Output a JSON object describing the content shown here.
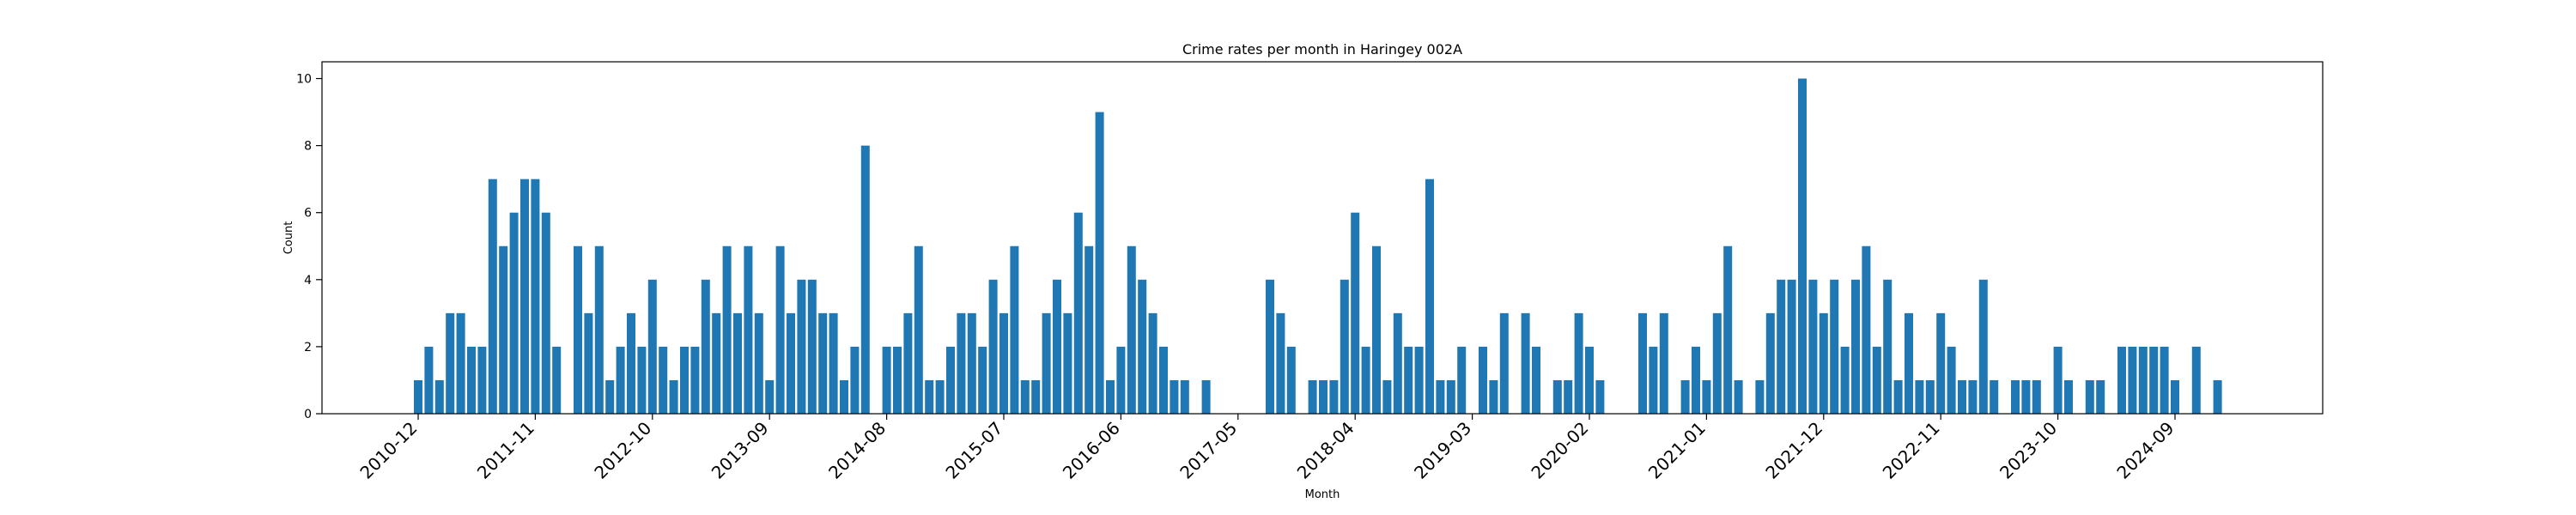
{
  "chart_data": {
    "type": "bar",
    "title": "Crime rates per month in Haringey 002A",
    "xlabel": "Month",
    "ylabel": "Count",
    "ylim": [
      0,
      10.5
    ],
    "yticks": [
      0,
      2,
      4,
      6,
      8,
      10
    ],
    "xticks": [
      "2010-12",
      "2011-11",
      "2012-10",
      "2013-09",
      "2014-08",
      "2015-07",
      "2016-06",
      "2017-05",
      "2018-04",
      "2019-03",
      "2020-02",
      "2021-01",
      "2021-12",
      "2022-11",
      "2023-10",
      "2024-09"
    ],
    "grid": false,
    "bar_color": "#1f77b4",
    "start_month": "2010-12",
    "values": [
      1,
      2,
      1,
      3,
      3,
      2,
      2,
      7,
      5,
      6,
      7,
      7,
      6,
      2,
      0,
      5,
      3,
      5,
      1,
      2,
      3,
      2,
      4,
      2,
      1,
      2,
      2,
      4,
      3,
      5,
      3,
      5,
      3,
      1,
      5,
      3,
      4,
      4,
      3,
      3,
      1,
      2,
      8,
      0,
      2,
      2,
      3,
      5,
      1,
      1,
      2,
      3,
      3,
      2,
      4,
      3,
      5,
      1,
      1,
      3,
      4,
      3,
      6,
      5,
      9,
      1,
      2,
      5,
      4,
      3,
      2,
      1,
      1,
      0,
      1,
      0,
      0,
      0,
      0,
      0,
      4,
      3,
      2,
      0,
      1,
      1,
      1,
      4,
      6,
      2,
      5,
      1,
      3,
      2,
      2,
      7,
      1,
      1,
      2,
      0,
      2,
      1,
      3,
      0,
      3,
      2,
      0,
      1,
      1,
      3,
      2,
      1,
      0,
      0,
      0,
      3,
      2,
      3,
      0,
      1,
      2,
      1,
      3,
      5,
      1,
      0,
      1,
      3,
      4,
      4,
      10,
      4,
      3,
      4,
      2,
      4,
      5,
      2,
      4,
      1,
      3,
      1,
      1,
      3,
      2,
      1,
      1,
      4,
      1,
      0,
      1,
      1,
      1,
      0,
      2,
      1,
      0,
      1,
      1,
      0,
      2,
      2,
      2,
      2,
      2,
      1,
      0,
      2,
      0,
      1
    ]
  }
}
